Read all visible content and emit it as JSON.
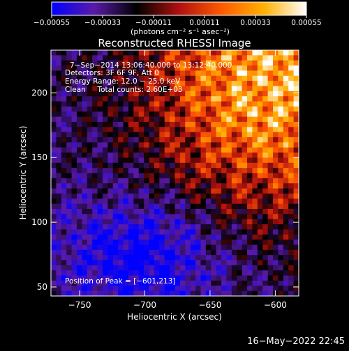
{
  "chart_data": {
    "type": "heatmap",
    "title": "Reconstructed RHESSI Image",
    "xlabel": "Heliocentric X (arcsec)",
    "ylabel": "Heliocentric Y (arcsec)",
    "xlim": [
      -772,
      -582
    ],
    "ylim": [
      43,
      233
    ],
    "x_ticks": [
      -750,
      -700,
      -650,
      -600
    ],
    "y_ticks": [
      50,
      100,
      150,
      200
    ],
    "x_tick_labels": [
      "−750",
      "−700",
      "−650",
      "−600"
    ],
    "y_tick_labels": [
      "50",
      "100",
      "150",
      "200"
    ],
    "grid": false,
    "colorbar": {
      "min": -0.00055,
      "max": 0.00055,
      "ticks": [
        -0.00055,
        -0.00033,
        -0.00011,
        0.00011,
        0.00033,
        0.00055
      ],
      "tick_labels": [
        "−0.00055",
        "−0.00033",
        "−0.00011",
        "0.00011",
        "0.00033",
        "0.00055"
      ],
      "units": "(photons cm⁻² s⁻¹ asec⁻²)",
      "colors": [
        "#0000ff",
        "#5a1aa8",
        "#000000",
        "#b01010",
        "#ff5a00",
        "#ffb000",
        "#ffffff"
      ]
    },
    "annotations": [
      "7−Sep−2014 13:06:40.000 to 13:12:40.000",
      "Detectors: 3F 6F 9F, Att 0",
      "Energy Range: 12.0 − 25.0 keV",
      "Clean     Total counts: 2.60E+03"
    ],
    "peak_label": "Position of Peak = [−601,213]",
    "peak": [
      -601,
      213
    ]
  },
  "footer": {
    "timestamp": "16−May−2022 22:45"
  }
}
